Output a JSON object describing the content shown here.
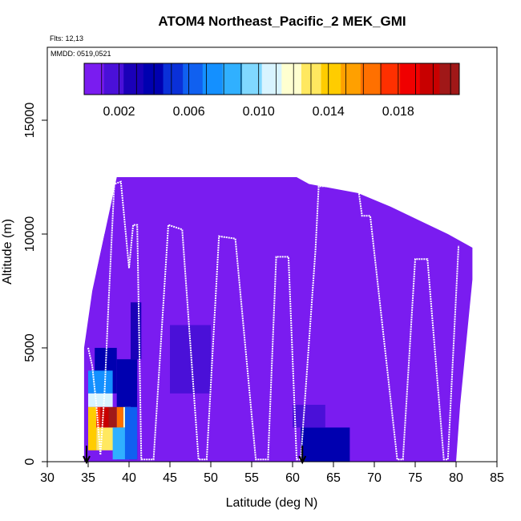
{
  "chart_data": {
    "type": "heatmap",
    "title": "ATOM4 Northeast_Pacific_2 MEK_GMI",
    "annotations": [
      "Flts: 12,13",
      "MMDD: 0519,0521"
    ],
    "xlabel": "Latitude (deg N)",
    "ylabel": "Altitude (m)",
    "xlim": [
      30,
      85
    ],
    "ylim": [
      0,
      18000
    ],
    "xticks": [
      30,
      35,
      40,
      45,
      50,
      55,
      60,
      65,
      70,
      75,
      80,
      85
    ],
    "yticks": [
      0,
      5000,
      10000,
      15000
    ],
    "colorbar": {
      "min": 0,
      "max": 0.0215,
      "ticks": [
        "0.002",
        "0.006",
        "0.010",
        "0.014",
        "0.018"
      ],
      "tick_values": [
        0.002,
        0.006,
        0.01,
        0.014,
        0.018
      ],
      "placement": "top inside plot",
      "colors": [
        "#7a1cf0",
        "#4a10d8",
        "#1a00b8",
        "#0000b0",
        "#0a30d8",
        "#1060f0",
        "#1490ff",
        "#30b0ff",
        "#80d8ff",
        "#d8f4ff",
        "#ffffd0",
        "#ffe860",
        "#ffcc00",
        "#ffa000",
        "#ff7000",
        "#ff3000",
        "#f00000",
        "#c80000",
        "#a01818"
      ]
    },
    "background_color": "#7a1cf0",
    "field_extent": [
      {
        "lat": 34.5,
        "alt_top": 5000
      },
      {
        "lat": 35.5,
        "alt_top": 7500
      },
      {
        "lat": 37.0,
        "alt_top": 10000
      },
      {
        "lat": 38.5,
        "alt_top": 12500
      },
      {
        "lat": 58.0,
        "alt_top": 12500
      },
      {
        "lat": 60.5,
        "alt_top": 12500
      },
      {
        "lat": 62.0,
        "alt_top": 12200
      },
      {
        "lat": 68.0,
        "alt_top": 11800
      },
      {
        "lat": 72.0,
        "alt_top": 11200
      },
      {
        "lat": 75.5,
        "alt_top": 10600
      },
      {
        "lat": 79.0,
        "alt_top": 10000
      },
      {
        "lat": 82.0,
        "alt_top": 9400
      },
      {
        "lat": 82.0,
        "alt_top": 8000
      },
      {
        "lat": 80.5,
        "alt_top": 2500
      },
      {
        "lat": 80.0,
        "alt_top": 0
      }
    ],
    "value_regions": [
      {
        "lat": [
          40.2,
          41.5
        ],
        "alt": [
          4500,
          7000
        ],
        "value": 0.0025
      },
      {
        "lat": [
          36.0,
          39.5
        ],
        "alt": [
          4500,
          10000
        ],
        "value": 0.001
      },
      {
        "lat": [
          35.8,
          38.5
        ],
        "alt": [
          3000,
          5000
        ],
        "value": 0.0035
      },
      {
        "lat": [
          38.5,
          41.0
        ],
        "alt": [
          100,
          4500
        ],
        "value": 0.004
      },
      {
        "lat": [
          41.0,
          45.0
        ],
        "alt": [
          1000,
          4000
        ],
        "value": 0.0008
      },
      {
        "lat": [
          45.0,
          50.0
        ],
        "alt": [
          3000,
          6000
        ],
        "value": 0.0018
      },
      {
        "lat": [
          61.0,
          67.0
        ],
        "alt": [
          0,
          1500
        ],
        "value": 0.0035
      },
      {
        "lat": [
          60.0,
          64.0
        ],
        "alt": [
          1500,
          2500
        ],
        "value": 0.0015
      },
      {
        "lat": [
          35.0,
          38.0
        ],
        "alt": [
          3000,
          4000
        ],
        "value": 0.007
      },
      {
        "lat": [
          35.0,
          38.0
        ],
        "alt": [
          2400,
          3000
        ],
        "value": 0.011
      },
      {
        "lat": [
          35.0,
          36.0
        ],
        "alt": [
          500,
          2400
        ],
        "value": 0.014
      },
      {
        "lat": [
          36.0,
          36.5
        ],
        "alt": [
          1200,
          2400
        ],
        "value": 0.017
      },
      {
        "lat": [
          36.5,
          37.5
        ],
        "alt": [
          1500,
          2400
        ],
        "value": 0.02
      },
      {
        "lat": [
          37.5,
          38.5
        ],
        "alt": [
          1500,
          2400
        ],
        "value": 0.021
      },
      {
        "lat": [
          38.5,
          39.3
        ],
        "alt": [
          1500,
          2400
        ],
        "value": 0.0165
      },
      {
        "lat": [
          39.3,
          40.2
        ],
        "alt": [
          1500,
          2400
        ],
        "value": 0.012
      },
      {
        "lat": [
          36.0,
          39.5
        ],
        "alt": [
          500,
          1500
        ],
        "value": 0.013
      },
      {
        "lat": [
          38.0,
          40.0
        ],
        "alt": [
          100,
          1500
        ],
        "value": 0.009
      },
      {
        "lat": [
          39.5,
          41.0
        ],
        "alt": [
          100,
          2400
        ],
        "value": 0.006
      }
    ],
    "flight_track": [
      [
        35.0,
        5000
      ],
      [
        35.5,
        4200
      ],
      [
        36.0,
        2500
      ],
      [
        36.5,
        300
      ],
      [
        37.0,
        3000
      ],
      [
        37.5,
        7000
      ],
      [
        38.2,
        12200
      ],
      [
        39.0,
        12300
      ],
      [
        40.0,
        8500
      ],
      [
        40.5,
        10400
      ],
      [
        41.0,
        10400
      ],
      [
        41.5,
        100
      ],
      [
        42.0,
        100
      ],
      [
        43.0,
        100
      ],
      [
        44.8,
        10400
      ],
      [
        46.5,
        10200
      ],
      [
        48.5,
        100
      ],
      [
        49.5,
        100
      ],
      [
        51.0,
        9900
      ],
      [
        53.0,
        9800
      ],
      [
        55.5,
        100
      ],
      [
        57.0,
        100
      ],
      [
        58.0,
        9000
      ],
      [
        59.5,
        9000
      ],
      [
        60.5,
        100
      ],
      [
        61.0,
        100
      ],
      [
        62.8,
        9300
      ],
      [
        63.2,
        12100
      ],
      [
        68.0,
        12100
      ],
      [
        68.5,
        10800
      ],
      [
        69.5,
        10800
      ],
      [
        72.8,
        100
      ],
      [
        73.5,
        100
      ],
      [
        75.0,
        8900
      ],
      [
        76.5,
        8900
      ],
      [
        78.5,
        100
      ],
      [
        79.0,
        100
      ],
      [
        80.3,
        9500
      ]
    ],
    "arrow_markers": [
      34.8,
      61.2
    ]
  }
}
